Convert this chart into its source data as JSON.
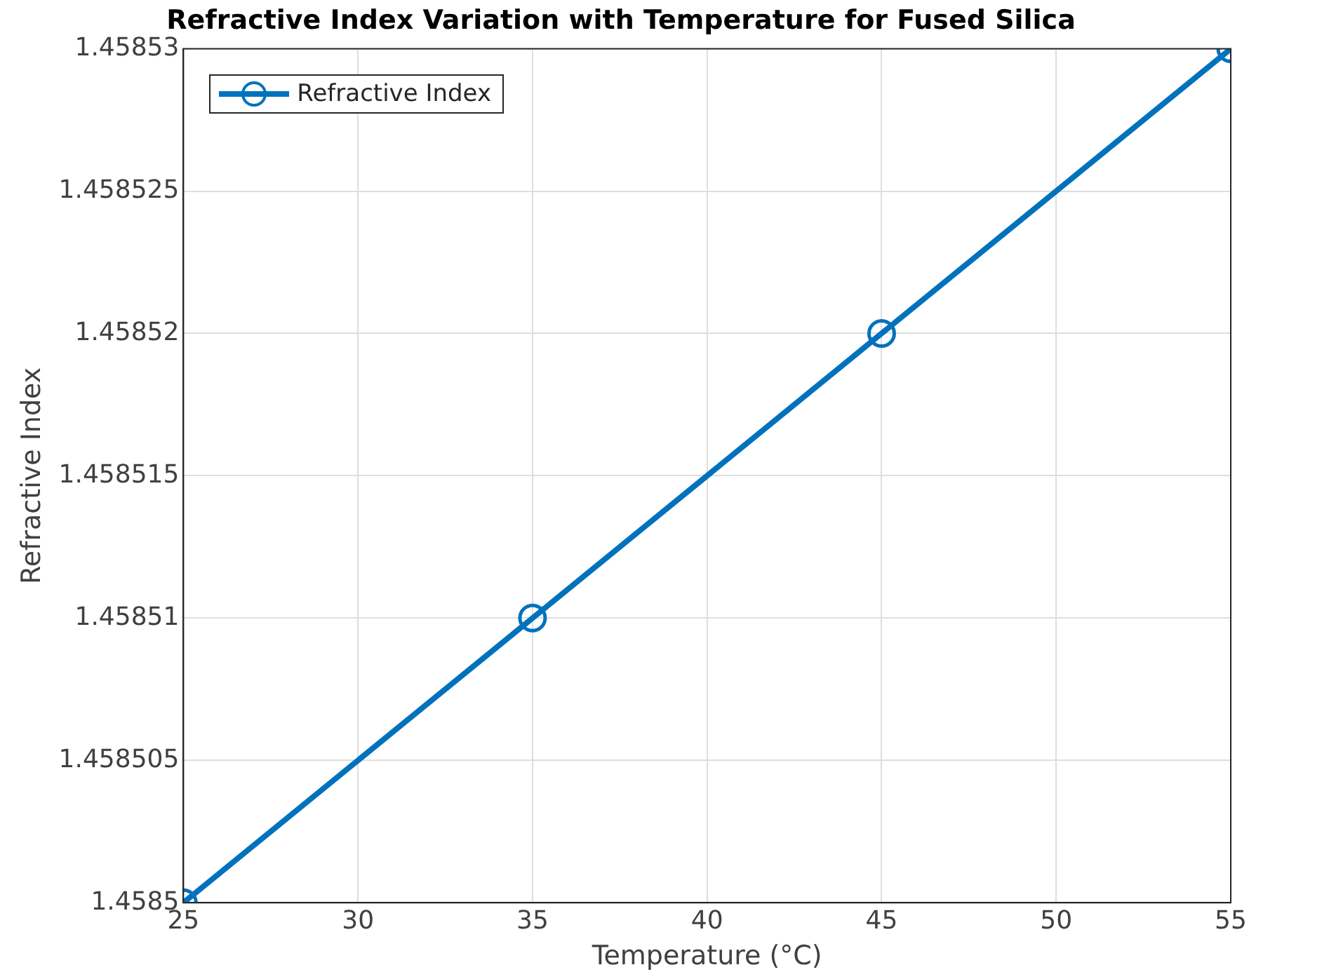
{
  "chart_data": {
    "type": "line",
    "title": "Refractive Index Variation with Temperature for Fused Silica",
    "xlabel": "Temperature (°C)",
    "ylabel": "Refractive Index",
    "x": [
      25,
      35,
      45,
      55
    ],
    "series": [
      {
        "name": "Refractive Index",
        "color": "#0072bd",
        "values": [
          1.4585,
          1.45851,
          1.45852,
          1.45853
        ]
      }
    ],
    "xlim": [
      25,
      55
    ],
    "xticks": [
      25,
      30,
      35,
      40,
      45,
      50,
      55
    ],
    "ylim": [
      1.4585,
      1.45853
    ],
    "yticks": [
      1.4585,
      1.458505,
      1.45851,
      1.458515,
      1.45852,
      1.458525,
      1.45853
    ],
    "grid": true,
    "legend": "top left",
    "marker": "circle",
    "line_style": "solid"
  }
}
